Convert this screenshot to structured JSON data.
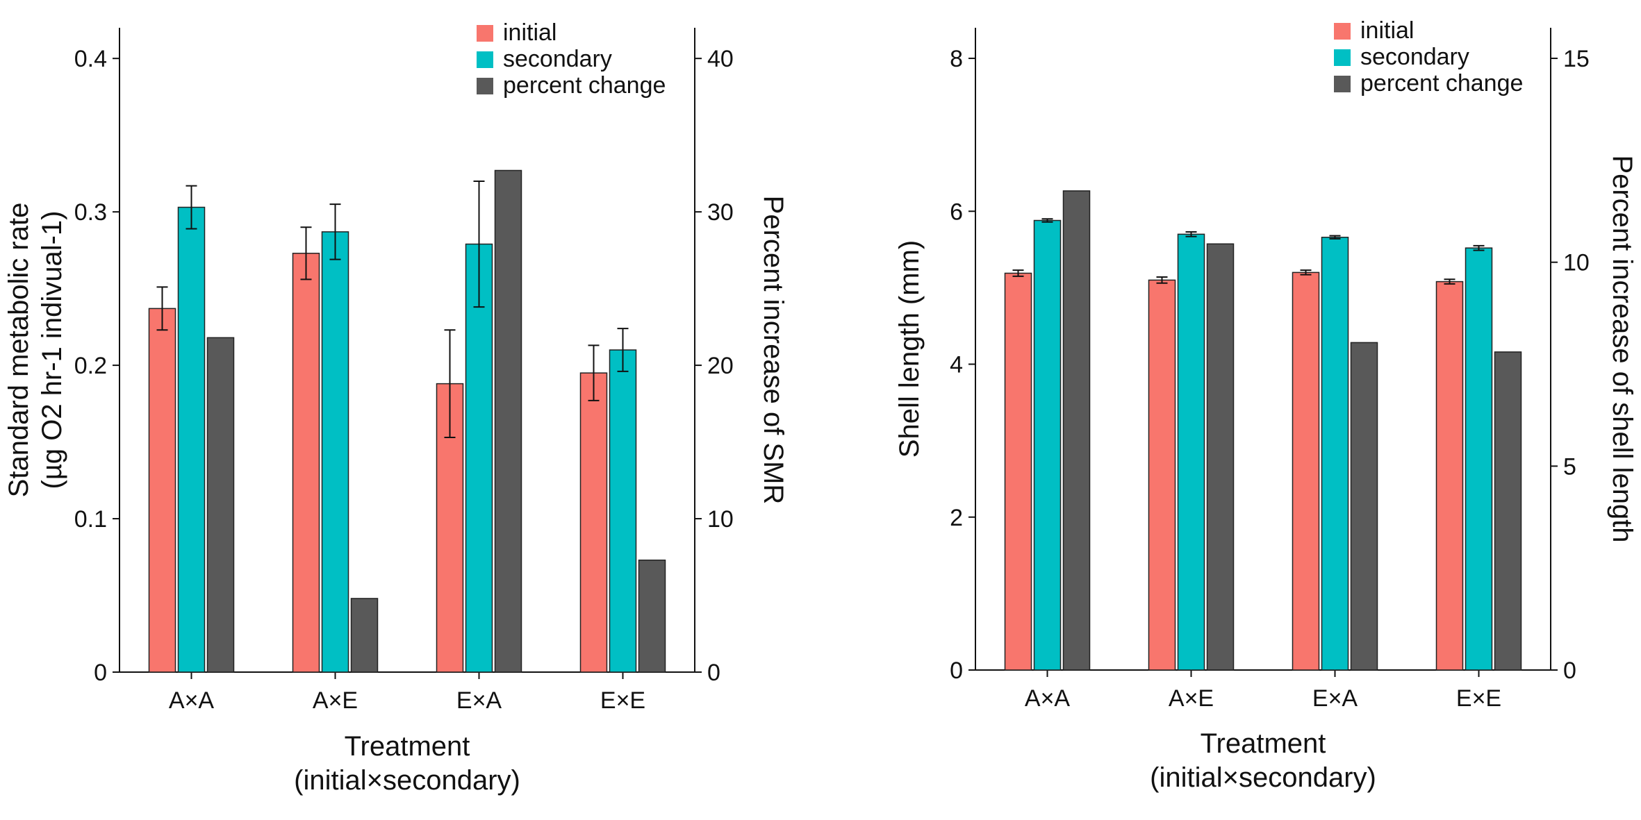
{
  "colors": {
    "initial": "#F8766D",
    "secondary": "#00BFC4",
    "percent_change": "#595959"
  },
  "chart_data": [
    {
      "type": "bar",
      "title": "",
      "categories": [
        "A×A",
        "A×E",
        "E×A",
        "E×E"
      ],
      "xlabel": [
        "Treatment",
        "(initial×secondary)"
      ],
      "ylabel": [
        "Standard metabolic rate",
        "(µg O2 hr-1 indivual-1)"
      ],
      "ylabel_right": "Percent increase of SMR",
      "ylim": [
        0,
        0.42
      ],
      "yticks": [
        0,
        0.1,
        0.2,
        0.3,
        0.4
      ],
      "ytick_labels": [
        "0",
        "0.1",
        "0.2",
        "0.3",
        "0.4"
      ],
      "ylim_right": [
        0,
        42
      ],
      "yticks_right": [
        0,
        10,
        20,
        30,
        40
      ],
      "ytick_labels_right": [
        "0",
        "10",
        "20",
        "30",
        "40"
      ],
      "grid": false,
      "legend_position": "top-right",
      "series": [
        {
          "name": "initial",
          "axis": "left",
          "values": [
            0.237,
            0.273,
            0.188,
            0.195
          ],
          "error": [
            0.014,
            0.017,
            0.035,
            0.018
          ]
        },
        {
          "name": "secondary",
          "axis": "left",
          "values": [
            0.303,
            0.287,
            0.279,
            0.21
          ],
          "error": [
            0.014,
            0.018,
            0.041,
            0.014
          ]
        },
        {
          "name": "percent change",
          "axis": "right",
          "values": [
            21.8,
            4.8,
            32.7,
            7.3
          ],
          "error": null
        }
      ]
    },
    {
      "type": "bar",
      "title": "",
      "categories": [
        "A×A",
        "A×E",
        "E×A",
        "E×E"
      ],
      "xlabel": [
        "Treatment",
        "(initial×secondary)"
      ],
      "ylabel": [
        "Shell length (mm)"
      ],
      "ylabel_right": "Percent increase of shell length",
      "ylim": [
        0,
        8.4
      ],
      "yticks": [
        0,
        2,
        4,
        6,
        8
      ],
      "ytick_labels": [
        "0",
        "2",
        "4",
        "6",
        "8"
      ],
      "ylim_right": [
        0,
        15.75
      ],
      "yticks_right": [
        0,
        5,
        10,
        15
      ],
      "ytick_labels_right": [
        "0",
        "5",
        "10",
        "15"
      ],
      "grid": false,
      "legend_position": "top-right",
      "series": [
        {
          "name": "initial",
          "axis": "left",
          "values": [
            5.19,
            5.1,
            5.2,
            5.08
          ],
          "error": [
            0.04,
            0.04,
            0.03,
            0.03
          ]
        },
        {
          "name": "secondary",
          "axis": "left",
          "values": [
            5.88,
            5.7,
            5.66,
            5.52
          ],
          "error": [
            0.02,
            0.03,
            0.02,
            0.03
          ]
        },
        {
          "name": "percent change",
          "axis": "right",
          "values": [
            11.75,
            10.45,
            8.03,
            7.8
          ],
          "error": null
        }
      ]
    }
  ]
}
